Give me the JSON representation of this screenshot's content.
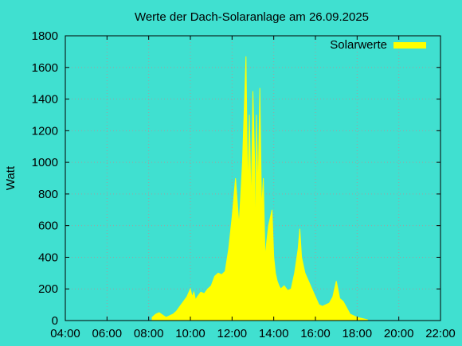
{
  "colors": {
    "background": "#40E0D0",
    "series": "#FFFF00",
    "grid": "#a0a0a0",
    "axis": "#000000"
  },
  "chart_data": {
    "type": "area",
    "title": "Werte der Dach-Solaranlage am 26.09.2025",
    "xlabel": "",
    "ylabel": "Watt",
    "xlim": [
      "04:00",
      "22:00"
    ],
    "ylim": [
      0,
      1800
    ],
    "x_ticks": [
      "04:00",
      "06:00",
      "08:00",
      "10:00",
      "12:00",
      "14:00",
      "16:00",
      "18:00",
      "20:00",
      "22:00"
    ],
    "y_ticks": [
      "0",
      "200",
      "400",
      "600",
      "800",
      "1000",
      "1200",
      "1400",
      "1600",
      "1800"
    ],
    "grid": true,
    "legend_position": "top-right",
    "series": [
      {
        "name": "Solarwerte",
        "x": [
          "08:10",
          "08:20",
          "08:30",
          "08:40",
          "08:50",
          "09:00",
          "09:10",
          "09:20",
          "09:30",
          "09:40",
          "09:50",
          "10:00",
          "10:05",
          "10:10",
          "10:15",
          "10:20",
          "10:30",
          "10:40",
          "10:50",
          "11:00",
          "11:10",
          "11:20",
          "11:30",
          "11:40",
          "11:50",
          "12:00",
          "12:10",
          "12:20",
          "12:30",
          "12:40",
          "12:45",
          "12:50",
          "12:55",
          "13:00",
          "13:05",
          "13:08",
          "13:10",
          "13:15",
          "13:20",
          "13:25",
          "13:30",
          "13:35",
          "13:40",
          "13:45",
          "13:50",
          "13:55",
          "14:00",
          "14:05",
          "14:10",
          "14:15",
          "14:20",
          "14:30",
          "14:40",
          "14:50",
          "15:00",
          "15:10",
          "15:15",
          "15:20",
          "15:30",
          "15:40",
          "15:50",
          "16:00",
          "16:10",
          "16:20",
          "16:30",
          "16:40",
          "16:50",
          "17:00",
          "17:10",
          "17:15",
          "17:20",
          "17:30",
          "17:40",
          "17:50",
          "18:00",
          "18:10",
          "18:20",
          "18:30"
        ],
        "values": [
          20,
          40,
          50,
          35,
          20,
          30,
          40,
          60,
          90,
          120,
          150,
          200,
          150,
          180,
          130,
          150,
          180,
          170,
          200,
          220,
          280,
          300,
          290,
          310,
          450,
          650,
          900,
          600,
          1000,
          1670,
          800,
          1300,
          700,
          1450,
          1000,
          400,
          1300,
          800,
          1470,
          700,
          900,
          400,
          500,
          600,
          650,
          700,
          400,
          300,
          250,
          220,
          200,
          220,
          190,
          200,
          300,
          450,
          580,
          400,
          300,
          250,
          200,
          150,
          100,
          90,
          100,
          110,
          150,
          250,
          140,
          130,
          120,
          80,
          40,
          30,
          20,
          15,
          10,
          5
        ]
      }
    ]
  }
}
